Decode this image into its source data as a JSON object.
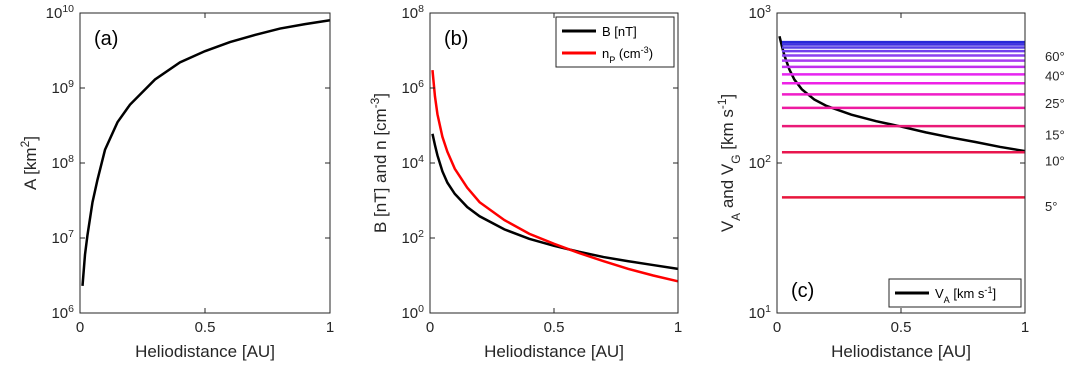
{
  "chart_data": [
    {
      "type": "line",
      "panel_label": "(a)",
      "panel_label_corner": "upper left",
      "xlabel": "Heliodistance [AU]",
      "ylabel": [
        "A [km",
        {
          "sup": "2"
        },
        "]"
      ],
      "x": [
        0.01,
        0.02,
        0.03,
        0.05,
        0.07,
        0.1,
        0.15,
        0.2,
        0.3,
        0.4,
        0.5,
        0.6,
        0.7,
        0.8,
        0.9,
        1.0
      ],
      "series": [
        {
          "color": "#000000",
          "values": [
            2300000,
            6000000,
            11000000,
            30000000,
            60000000,
            150000000,
            350000000,
            600000000,
            1300000000,
            2200000000,
            3100000000,
            4100000000,
            5100000000,
            6200000000,
            7100000000,
            8000000000
          ]
        }
      ],
      "xlim": [
        0,
        1
      ],
      "xticks": [
        0,
        0.5,
        1
      ],
      "ylim": [
        1000000,
        10000000000
      ],
      "yscale": "log",
      "yticks": [
        {
          "value": 1000000,
          "label": [
            "10",
            {
              "sup": "6"
            }
          ]
        },
        {
          "value": 10000000,
          "label": [
            "10",
            {
              "sup": "7"
            }
          ]
        },
        {
          "value": 100000000,
          "label": [
            "10",
            {
              "sup": "8"
            }
          ]
        },
        {
          "value": 1000000000,
          "label": [
            "10",
            {
              "sup": "9"
            }
          ]
        },
        {
          "value": 10000000000,
          "label": [
            "10",
            {
              "sup": "10"
            }
          ]
        }
      ]
    },
    {
      "type": "line",
      "panel_label": "(b)",
      "panel_label_corner": "upper left",
      "xlabel": "Heliodistance [AU]",
      "ylabel": [
        "B [nT] and n [cm",
        {
          "sup": "-3"
        },
        "]"
      ],
      "x": [
        0.01,
        0.02,
        0.03,
        0.05,
        0.07,
        0.1,
        0.15,
        0.2,
        0.3,
        0.4,
        0.5,
        0.6,
        0.7,
        0.8,
        0.9,
        1.0
      ],
      "series": [
        {
          "name": "B [nT]",
          "color": "#000000",
          "values": [
            60000,
            30000,
            16000,
            6000,
            3000,
            1500,
            670,
            380,
            170,
            95,
            62,
            43,
            31,
            24,
            19,
            15
          ]
        },
        {
          "name": [
            "n",
            {
              "sub": "P"
            },
            " (cm",
            {
              "sup": "-3"
            },
            ")"
          ],
          "color": "#ff0000",
          "values": [
            3000000,
            600000,
            200000,
            50000,
            20000,
            7000,
            2200,
            900,
            300,
            130,
            70,
            40,
            24,
            15,
            10,
            7
          ]
        }
      ],
      "legend": "upper right",
      "xlim": [
        0,
        1
      ],
      "xticks": [
        0,
        0.5,
        1
      ],
      "ylim": [
        1,
        100000000
      ],
      "yscale": "log",
      "yticks": [
        {
          "value": 1,
          "label": [
            "10",
            {
              "sup": "0"
            }
          ]
        },
        {
          "value": 100,
          "label": [
            "10",
            {
              "sup": "2"
            }
          ]
        },
        {
          "value": 10000,
          "label": [
            "10",
            {
              "sup": "4"
            }
          ]
        },
        {
          "value": 1000000,
          "label": [
            "10",
            {
              "sup": "6"
            }
          ]
        },
        {
          "value": 100000000,
          "label": [
            "10",
            {
              "sup": "8"
            }
          ]
        }
      ]
    },
    {
      "type": "line",
      "panel_label": "(c)",
      "panel_label_corner": "lower left",
      "xlabel": "Heliodistance [AU]",
      "ylabel": [
        "V",
        {
          "sub": "A"
        },
        " and V",
        {
          "sub": "G"
        },
        " [km s",
        {
          "sup": "-1"
        },
        "]"
      ],
      "x": [
        0.01,
        0.02,
        0.03,
        0.05,
        0.07,
        0.1,
        0.15,
        0.2,
        0.3,
        0.4,
        0.5,
        0.6,
        0.7,
        0.8,
        0.9,
        1.0
      ],
      "series": [
        {
          "name": [
            "V",
            {
              "sub": "A"
            },
            " [km s",
            {
              "sup": "-1"
            },
            "]"
          ],
          "color": "#000000",
          "values": [
            700,
            600,
            520,
            420,
            360,
            310,
            265,
            240,
            210,
            190,
            175,
            160,
            148,
            138,
            128,
            120
          ]
        },
        {
          "color": "#e8163c",
          "x": [
            0.02,
            1
          ],
          "values": [
            59,
            59
          ],
          "label": "5°"
        },
        {
          "color": "#e8164e",
          "x": [
            0.02,
            1
          ],
          "values": [
            118,
            118
          ],
          "label": "10°"
        },
        {
          "color": "#ea1a78",
          "x": [
            0.02,
            1
          ],
          "values": [
            176,
            176
          ],
          "label": "15°"
        },
        {
          "color": "#ee1aa0",
          "x": [
            0.02,
            1
          ],
          "values": [
            233,
            233
          ]
        },
        {
          "color": "#f01ec8",
          "x": [
            0.02,
            1
          ],
          "values": [
            287,
            287
          ],
          "label": "25°"
        },
        {
          "color": "#ee22e6",
          "x": [
            0.02,
            1
          ],
          "values": [
            340,
            340
          ]
        },
        {
          "color": "#e626f0",
          "x": [
            0.02,
            1
          ],
          "values": [
            390,
            390
          ]
        },
        {
          "color": "#c22eee",
          "x": [
            0.02,
            1
          ],
          "values": [
            437,
            437
          ],
          "label": "40°"
        },
        {
          "color": "#a83cf0",
          "x": [
            0.02,
            1
          ],
          "values": [
            481,
            481
          ]
        },
        {
          "color": "#8c40f0",
          "x": [
            0.02,
            1
          ],
          "values": [
            521,
            521
          ]
        },
        {
          "color": "#7040ec",
          "x": [
            0.02,
            1
          ],
          "values": [
            557,
            557
          ]
        },
        {
          "color": "#5a40e6",
          "x": [
            0.02,
            1
          ],
          "values": [
            589,
            589
          ],
          "label": "60°"
        },
        {
          "color": "#4030e0",
          "x": [
            0.02,
            1
          ],
          "values": [
            616,
            616
          ]
        },
        {
          "color": "#2828d8",
          "x": [
            0.02,
            1
          ],
          "values": [
            639,
            639
          ]
        }
      ],
      "legend": "lower right",
      "xlim": [
        0,
        1
      ],
      "xticks": [
        0,
        0.5,
        1
      ],
      "ylim": [
        10,
        1000
      ],
      "yscale": "log",
      "yticks": [
        {
          "value": 10,
          "label": [
            "10",
            {
              "sup": "1"
            }
          ]
        },
        {
          "value": 100,
          "label": [
            "10",
            {
              "sup": "2"
            }
          ]
        },
        {
          "value": 1000,
          "label": [
            "10",
            {
              "sup": "3"
            }
          ]
        }
      ]
    }
  ]
}
